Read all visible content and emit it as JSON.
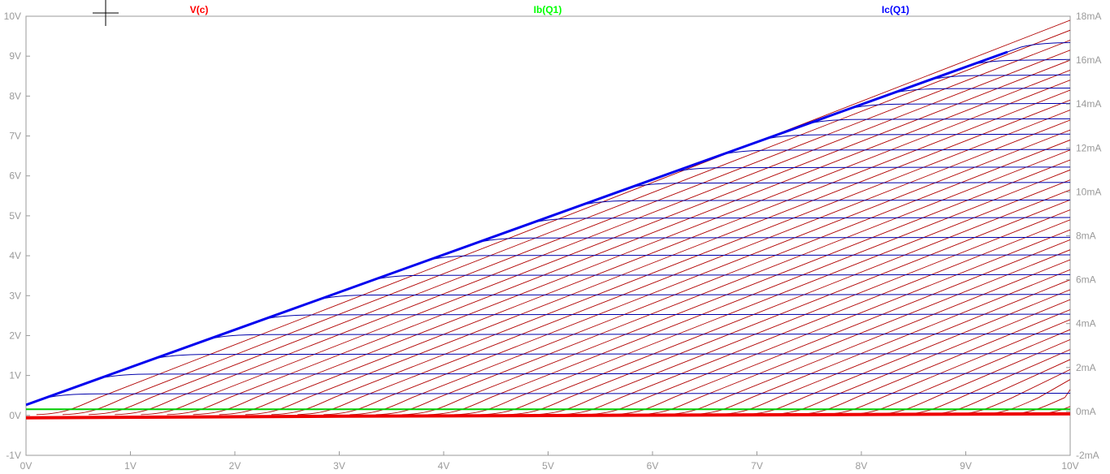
{
  "chart_data": {
    "type": "line",
    "x_axis": {
      "min": 0,
      "max": 10,
      "step": 1,
      "unit": "V",
      "tick_labels": [
        "0V",
        "1V",
        "2V",
        "3V",
        "4V",
        "5V",
        "6V",
        "7V",
        "8V",
        "9V",
        "10V"
      ]
    },
    "y_left": {
      "min": -1,
      "max": 10,
      "step": 1,
      "unit": "V",
      "tick_labels": [
        "-1V",
        "0V",
        "1V",
        "2V",
        "3V",
        "4V",
        "5V",
        "6V",
        "7V",
        "8V",
        "9V",
        "10V"
      ]
    },
    "y_right": {
      "min": -2,
      "max": 18,
      "step": 2,
      "unit": "mA",
      "tick_labels": [
        "-2mA",
        "0mA",
        "2mA",
        "4mA",
        "6mA",
        "8mA",
        "10mA",
        "12mA",
        "14mA",
        "16mA",
        "18mA"
      ]
    },
    "grid": false,
    "legend_position": "top",
    "series": [
      {
        "name": "V(c)",
        "color": "#ff0000",
        "trace_color": "#b00000",
        "axis": "left",
        "family": "collector_voltage_sweep",
        "family_count": 40,
        "offset_step": 0.25,
        "start_offset": 0.1
      },
      {
        "name": "Ib(Q1)",
        "color": "#00ff00",
        "trace_color": "#00cc00",
        "axis": "right",
        "values_mA": [
          0.1,
          0.1
        ]
      },
      {
        "name": "Ic(Q1)",
        "color": "#0000ff",
        "trace_color": "#0000aa",
        "axis": "right",
        "family": "collector_current",
        "saturation_slope_mA_per_V": 1.71,
        "saturation_intercept_mA": 0.3,
        "levels_mA": [
          0.8,
          1.7,
          2.6,
          3.5,
          4.4,
          5.3,
          6.2,
          7.1,
          7.9,
          8.8,
          9.6,
          10.4,
          11.1,
          11.9,
          12.6,
          13.3,
          14.0,
          14.7,
          15.3,
          16.0,
          16.8
        ]
      }
    ]
  }
}
